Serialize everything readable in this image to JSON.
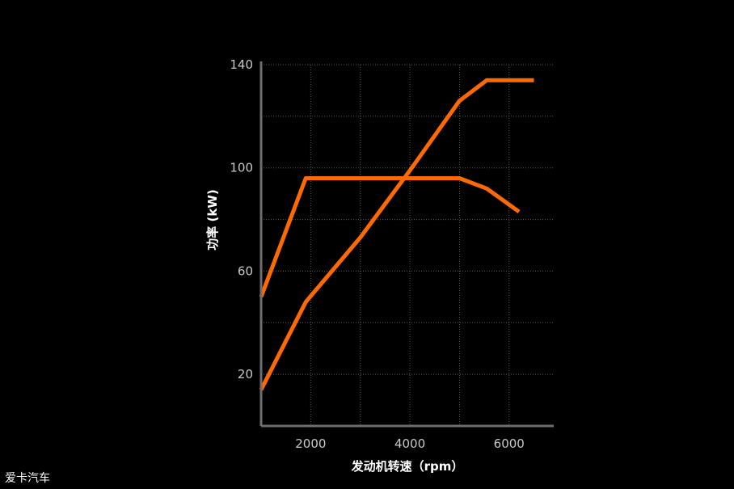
{
  "chart_data": {
    "type": "line",
    "xlabel": "发动机转速（rpm）",
    "ylabel": "功率 (kW)",
    "xlim": [
      1000,
      6900
    ],
    "ylim": [
      0,
      140
    ],
    "xticks": [
      2000,
      4000,
      6000
    ],
    "yticks": [
      20,
      60,
      100,
      140
    ],
    "grid": true,
    "series": [
      {
        "values": [
          [
            1000,
            50
          ],
          [
            1900,
            96
          ],
          [
            3000,
            96
          ],
          [
            5000,
            96
          ],
          [
            5550,
            92
          ],
          [
            6200,
            83
          ]
        ]
      },
      {
        "values": [
          [
            1000,
            14
          ],
          [
            1900,
            48
          ],
          [
            3000,
            73
          ],
          [
            4000,
            99
          ],
          [
            5000,
            126
          ],
          [
            5550,
            134
          ],
          [
            6500,
            134
          ]
        ]
      }
    ],
    "colors": {
      "line": "#ff6a00",
      "axis": "#6e6e6e",
      "grid": "#5a5a5a",
      "background": "#000000"
    }
  },
  "watermark": "爱卡汽车"
}
